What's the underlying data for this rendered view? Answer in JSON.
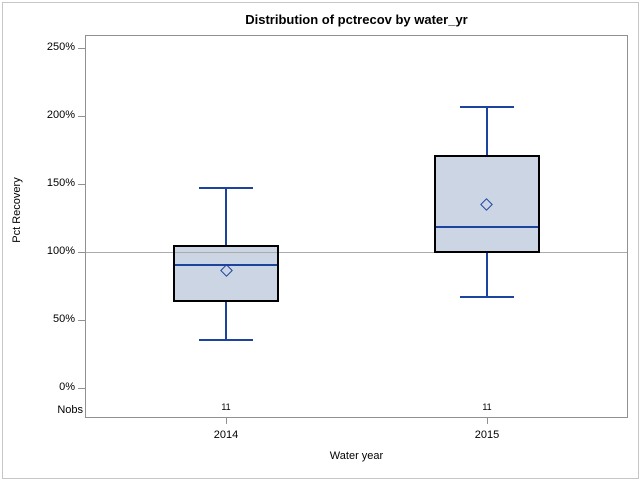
{
  "figure": {
    "title": "Distribution of pctrecov by water_yr",
    "y_axis_label": "Pct Recovery",
    "x_axis_label": "Water year",
    "nobs_label": "Nobs"
  },
  "colors": {
    "box_fill": "#cbd5e4",
    "box_border": "#000000",
    "line_blue": "#1c449e",
    "frame_gray": "#919191",
    "reference_line_gray": "#ababab",
    "outer_border_gray": "#c6c6c6",
    "text": "#000000"
  },
  "chart_data": {
    "type": "boxplot",
    "title": "Distribution of pctrecov by water_yr",
    "xlabel": "Water year",
    "ylabel": "Pct Recovery",
    "categories": [
      "2014",
      "2015"
    ],
    "y_tick_labels": [
      "0%",
      "50%",
      "100%",
      "150%",
      "200%",
      "250%"
    ],
    "y_tick_values": [
      0,
      50,
      100,
      150,
      200,
      250
    ],
    "ylim": [
      0,
      259
    ],
    "reference_line": 100,
    "grid": "off",
    "legend": "none",
    "nobs_row_label": "Nobs",
    "groups": [
      {
        "category": "2014",
        "nobs": "11",
        "whisker_low": 35,
        "q1": 63,
        "median": 90,
        "mean": 86,
        "q3": 105,
        "whisker_high": 147
      },
      {
        "category": "2015",
        "nobs": "11",
        "whisker_low": 67,
        "q1": 99,
        "median": 118,
        "mean": 135,
        "q3": 171,
        "whisker_high": 206
      }
    ]
  }
}
